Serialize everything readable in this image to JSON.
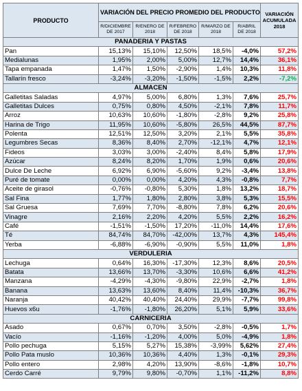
{
  "header": {
    "product": "PRODUCTO",
    "variation": "VARIACIÓN DEL PRECIO PROMEDIO DEL PRODUCTO",
    "accumulated": "VARIACIÓN ACUMULADA 2018"
  },
  "subheaders": [
    "R/DICIEMBRE DE 2017",
    "R/ENERO DE 2018",
    "R/FEBRERO DE 2018",
    "R/MARZO DE 2018",
    "R/ABRIL DE 2018"
  ],
  "sections": [
    {
      "title": "PANADERIA Y PASTAS",
      "rows": [
        [
          "Pan",
          "15,13%",
          "15,10%",
          "12,50%",
          "18,5%",
          "-4,0%",
          "57,2%"
        ],
        [
          "Medialunas",
          "1,95%",
          "2,00%",
          "5,00%",
          "12,7%",
          "14,4%",
          "36,1%"
        ],
        [
          "Tapa empanada",
          "1,47%",
          "1,50%",
          "-2,90%",
          "1,4%",
          "10,3%",
          "11,8%"
        ],
        [
          "Tallarín fresco",
          "-3,24%",
          "-3,20%",
          "-1,50%",
          "-1,5%",
          "2,2%",
          "-7,2%"
        ]
      ]
    },
    {
      "title": "ALMACEN",
      "rows": [
        [
          "Galletitas Saladas",
          "4,97%",
          "5,00%",
          "6,80%",
          "1,3%",
          "7,6%",
          "25,7%"
        ],
        [
          "Galletitas Dulces",
          "0,75%",
          "0,80%",
          "4,50%",
          "-2,1%",
          "7,8%",
          "11,7%"
        ],
        [
          "Arroz",
          "10,63%",
          "10,60%",
          "-1,80%",
          "-2,8%",
          "9,2%",
          "25,8%"
        ],
        [
          "Harina de Trigo",
          "11,95%",
          "10,60%",
          "-5,80%",
          "26,5%",
          "44,5%",
          "87,7%"
        ],
        [
          "Polenta",
          "12,51%",
          "12,50%",
          "3,20%",
          "2,1%",
          "5,5%",
          "35,8%"
        ],
        [
          "Legumbres Secas",
          "8,36%",
          "8,40%",
          "2,70%",
          "-12,1%",
          "4,7%",
          "12,1%"
        ],
        [
          "Fideos",
          "3,03%",
          "3,00%",
          "-2,40%",
          "8,4%",
          "5,8%",
          "17,9%"
        ],
        [
          "Azúcar",
          "8,24%",
          "8,20%",
          "1,70%",
          "1,9%",
          "0,6%",
          "20,6%"
        ],
        [
          "Dulce De Leche",
          "6,92%",
          "6,90%",
          "-5,60%",
          "9,2%",
          "-3,4%",
          "13,8%"
        ],
        [
          "Puré de tomate",
          "0,00%",
          "0,00%",
          "4,20%",
          "4,3%",
          "-0,8%",
          "7,7%"
        ],
        [
          "Aceite de girasol",
          "-0,76%",
          "-0,80%",
          "5,30%",
          "1,8%",
          "13,2%",
          "18,7%"
        ],
        [
          "Sal Fina",
          "1,77%",
          "1,80%",
          "2,80%",
          "3,8%",
          "5,3%",
          "15,5%"
        ],
        [
          "Sal Gruesa",
          "7,69%",
          "7,70%",
          "-8,80%",
          "7,8%",
          "6,2%",
          "20,6%"
        ],
        [
          "Vinagre",
          "2,16%",
          "2,20%",
          "4,20%",
          "5,5%",
          "2,2%",
          "16,2%"
        ],
        [
          "Café",
          "-1,51%",
          "-1,50%",
          "17,20%",
          "-11,0%",
          "14,4%",
          "17,6%"
        ],
        [
          "Té",
          "84,74%",
          "84,70%",
          "-42,00%",
          "13,7%",
          "4,3%",
          "145,4%"
        ],
        [
          "Yerba",
          "-6,88%",
          "-6,90%",
          "-0,90%",
          "5,5%",
          "11,0%",
          "1,8%"
        ]
      ]
    },
    {
      "title": "VERDULERIA",
      "rows": [
        [
          "Lechuga",
          "0,64%",
          "16,30%",
          "-17,30%",
          "12,3%",
          "8,6%",
          "20,5%"
        ],
        [
          "Batata",
          "13,66%",
          "13,70%",
          "-3,30%",
          "10,6%",
          "6,6%",
          "41,2%"
        ],
        [
          "Manzana",
          "-4,29%",
          "-4,30%",
          "-9,80%",
          "22,9%",
          "-2,7%",
          "1,8%"
        ],
        [
          "Banana",
          "13,63%",
          "13,60%",
          "8,40%",
          "11,4%",
          "-10,3%",
          "36,7%"
        ],
        [
          "Naranja",
          "40,42%",
          "40,40%",
          "24,40%",
          "29,9%",
          "-7,7%",
          "99,8%"
        ],
        [
          "Huevos x6u",
          "-1,76%",
          "-1,80%",
          "26,20%",
          "5,1%",
          "5,9%",
          "33,6%"
        ]
      ]
    },
    {
      "title": "CARNICERIA",
      "rows": [
        [
          "Asado",
          "0,67%",
          "0,70%",
          "3,50%",
          "-2,8%",
          "-0,5%",
          "1,7%"
        ],
        [
          "Vacío",
          "-1,16%",
          "-1,20%",
          "4,00%",
          "5,0%",
          "-4,9%",
          "1,8%"
        ],
        [
          "Pollo pechuga",
          "5,15%",
          "5,27%",
          "15,38%",
          "-3,99%",
          "5,62%",
          "27,4%"
        ],
        [
          "Pollo Pata muslo",
          "10,36%",
          "10,36%",
          "4,40%",
          "1,3%",
          "-0,1%",
          "29,3%"
        ],
        [
          "Pollo entero",
          "2,98%",
          "4,20%",
          "13,90%",
          "-8,6%",
          "-1,8%",
          "10,7%"
        ],
        [
          "Cerdo Carré",
          "9,79%",
          "9,80%",
          "-0,70%",
          "1,1%",
          "-11,2%",
          "8,8%"
        ]
      ]
    }
  ]
}
